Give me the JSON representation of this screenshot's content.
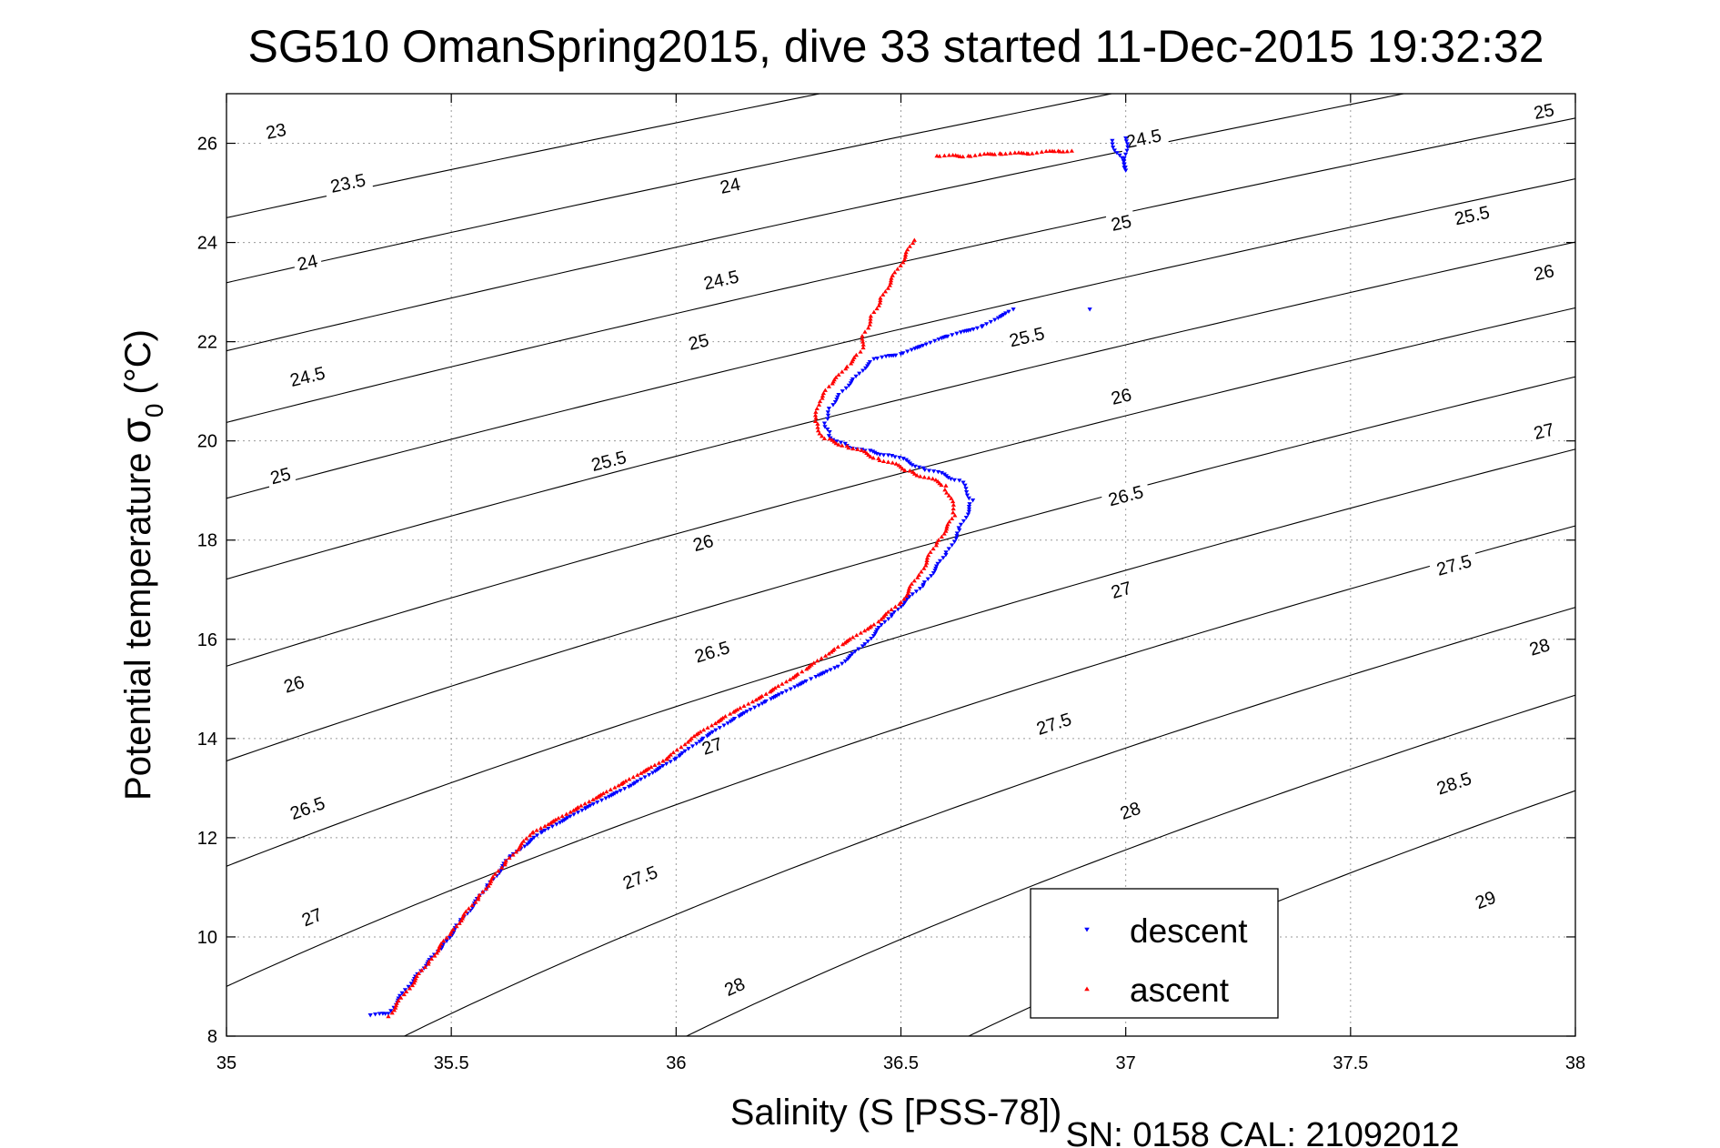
{
  "chart_data": {
    "type": "scatter",
    "title": "SG510 OmanSpring2015, dive 33 started 11-Dec-2015 19:32:32",
    "xlabel": "Salinity (S [PSS-78])",
    "ylabel": "Potential temperature",
    "ylabel_symbol": "σ",
    "ylabel_subscript": "0",
    "ylabel_unit": "(°C)",
    "xlim": [
      35,
      38
    ],
    "ylim": [
      8,
      27
    ],
    "xticks": [
      "35",
      "35.5",
      "36",
      "36.5",
      "37",
      "37.5",
      "38"
    ],
    "yticks": [
      "8",
      "10",
      "12",
      "14",
      "16",
      "18",
      "20",
      "22",
      "24",
      "26"
    ],
    "grid": true,
    "legend_position": "bottom-right",
    "footer": "SN: 0158  CAL: 21092012",
    "series": [
      {
        "name": "descent",
        "color": "#0000ff",
        "marker": "triangle-down",
        "points": [
          [
            35.32,
            8.42
          ],
          [
            35.36,
            8.45
          ],
          [
            35.42,
            9.2
          ],
          [
            35.48,
            9.8
          ],
          [
            35.52,
            10.3
          ],
          [
            35.58,
            11.0
          ],
          [
            35.63,
            11.6
          ],
          [
            35.7,
            12.1
          ],
          [
            35.8,
            12.6
          ],
          [
            35.9,
            13.05
          ],
          [
            36.0,
            13.6
          ],
          [
            36.06,
            14.0
          ],
          [
            36.13,
            14.4
          ],
          [
            36.2,
            14.75
          ],
          [
            36.3,
            15.2
          ],
          [
            36.36,
            15.45
          ],
          [
            36.42,
            15.9
          ],
          [
            36.48,
            16.5
          ],
          [
            36.55,
            17.1
          ],
          [
            36.6,
            17.7
          ],
          [
            36.63,
            18.2
          ],
          [
            36.66,
            18.8
          ],
          [
            36.63,
            19.2
          ],
          [
            36.55,
            19.45
          ],
          [
            36.48,
            19.7
          ],
          [
            36.42,
            19.8
          ],
          [
            36.38,
            19.9
          ],
          [
            36.34,
            20.1
          ],
          [
            36.33,
            20.35
          ],
          [
            36.34,
            20.65
          ],
          [
            36.37,
            21.0
          ],
          [
            36.4,
            21.3
          ],
          [
            36.44,
            21.65
          ],
          [
            36.5,
            21.75
          ],
          [
            36.6,
            22.1
          ],
          [
            36.68,
            22.3
          ],
          [
            36.75,
            22.65
          ],
          [
            36.92,
            22.65
          ],
          [
            36.97,
            26.05
          ],
          [
            37.0,
            25.45
          ],
          [
            37.0,
            26.1
          ]
        ]
      },
      {
        "name": "ascent",
        "color": "#ff0000",
        "marker": "triangle-up",
        "points": [
          [
            35.36,
            8.4
          ],
          [
            35.4,
            8.9
          ],
          [
            35.45,
            9.5
          ],
          [
            35.5,
            10.1
          ],
          [
            35.56,
            10.8
          ],
          [
            35.62,
            11.5
          ],
          [
            35.68,
            12.1
          ],
          [
            35.78,
            12.6
          ],
          [
            35.88,
            13.1
          ],
          [
            35.98,
            13.6
          ],
          [
            36.04,
            14.05
          ],
          [
            36.12,
            14.5
          ],
          [
            36.2,
            14.9
          ],
          [
            36.28,
            15.35
          ],
          [
            36.36,
            15.85
          ],
          [
            36.44,
            16.3
          ],
          [
            36.5,
            16.75
          ],
          [
            36.54,
            17.3
          ],
          [
            36.58,
            17.95
          ],
          [
            36.62,
            18.5
          ],
          [
            36.6,
            19.1
          ],
          [
            36.52,
            19.4
          ],
          [
            36.45,
            19.65
          ],
          [
            36.38,
            19.9
          ],
          [
            36.33,
            20.05
          ],
          [
            36.31,
            20.4
          ],
          [
            36.32,
            20.8
          ],
          [
            36.34,
            21.1
          ],
          [
            36.38,
            21.5
          ],
          [
            36.41,
            21.8
          ],
          [
            36.42,
            22.2
          ],
          [
            36.44,
            22.6
          ],
          [
            36.46,
            22.95
          ],
          [
            36.53,
            24.05
          ],
          [
            36.58,
            25.75
          ],
          [
            36.65,
            25.75
          ],
          [
            36.72,
            25.8
          ],
          [
            36.78,
            25.8
          ],
          [
            36.85,
            25.85
          ],
          [
            36.88,
            25.85
          ]
        ]
      }
    ],
    "contour_levels": [
      "23",
      "23.5",
      "24",
      "24.5",
      "25",
      "25.5",
      "26",
      "26.5",
      "27",
      "27.5",
      "28",
      "28.5",
      "29"
    ],
    "contour_labels": [
      {
        "text": "23",
        "s": 35.11,
        "t": 26.25
      },
      {
        "text": "23.5",
        "s": 35.27,
        "t": 25.2
      },
      {
        "text": "24",
        "s": 35.18,
        "t": 23.6
      },
      {
        "text": "24.5",
        "s": 35.18,
        "t": 21.3
      },
      {
        "text": "25",
        "s": 35.12,
        "t": 19.3
      },
      {
        "text": "26",
        "s": 35.15,
        "t": 15.1
      },
      {
        "text": "26.5",
        "s": 35.18,
        "t": 12.6
      },
      {
        "text": "27",
        "s": 35.19,
        "t": 10.4
      },
      {
        "text": "24",
        "s": 36.12,
        "t": 25.15
      },
      {
        "text": "24.5",
        "s": 36.1,
        "t": 23.25
      },
      {
        "text": "25",
        "s": 36.05,
        "t": 22.0
      },
      {
        "text": "25.5",
        "s": 35.85,
        "t": 19.6
      },
      {
        "text": "26",
        "s": 36.06,
        "t": 17.95
      },
      {
        "text": "26.5",
        "s": 36.08,
        "t": 15.75
      },
      {
        "text": "27",
        "s": 36.08,
        "t": 13.85
      },
      {
        "text": "27.5",
        "s": 35.92,
        "t": 11.2
      },
      {
        "text": "28",
        "s": 36.13,
        "t": 9.0
      },
      {
        "text": "24.5",
        "s": 37.04,
        "t": 26.1
      },
      {
        "text": "25",
        "s": 36.99,
        "t": 24.4
      },
      {
        "text": "25.5",
        "s": 36.78,
        "t": 22.1
      },
      {
        "text": "26",
        "s": 36.99,
        "t": 20.9
      },
      {
        "text": "26.5",
        "s": 37.0,
        "t": 18.9
      },
      {
        "text": "27",
        "s": 36.99,
        "t": 17.0
      },
      {
        "text": "27.5",
        "s": 36.84,
        "t": 14.3
      },
      {
        "text": "28",
        "s": 37.01,
        "t": 12.55
      },
      {
        "text": "25",
        "s": 37.93,
        "t": 26.65
      },
      {
        "text": "25.5",
        "s": 37.77,
        "t": 24.55
      },
      {
        "text": "26",
        "s": 37.93,
        "t": 23.4
      },
      {
        "text": "27",
        "s": 37.93,
        "t": 20.2
      },
      {
        "text": "27.5",
        "s": 37.73,
        "t": 17.5
      },
      {
        "text": "28",
        "s": 37.92,
        "t": 15.85
      },
      {
        "text": "28.5",
        "s": 37.73,
        "t": 13.1
      },
      {
        "text": "29",
        "s": 37.8,
        "t": 10.75
      }
    ]
  }
}
